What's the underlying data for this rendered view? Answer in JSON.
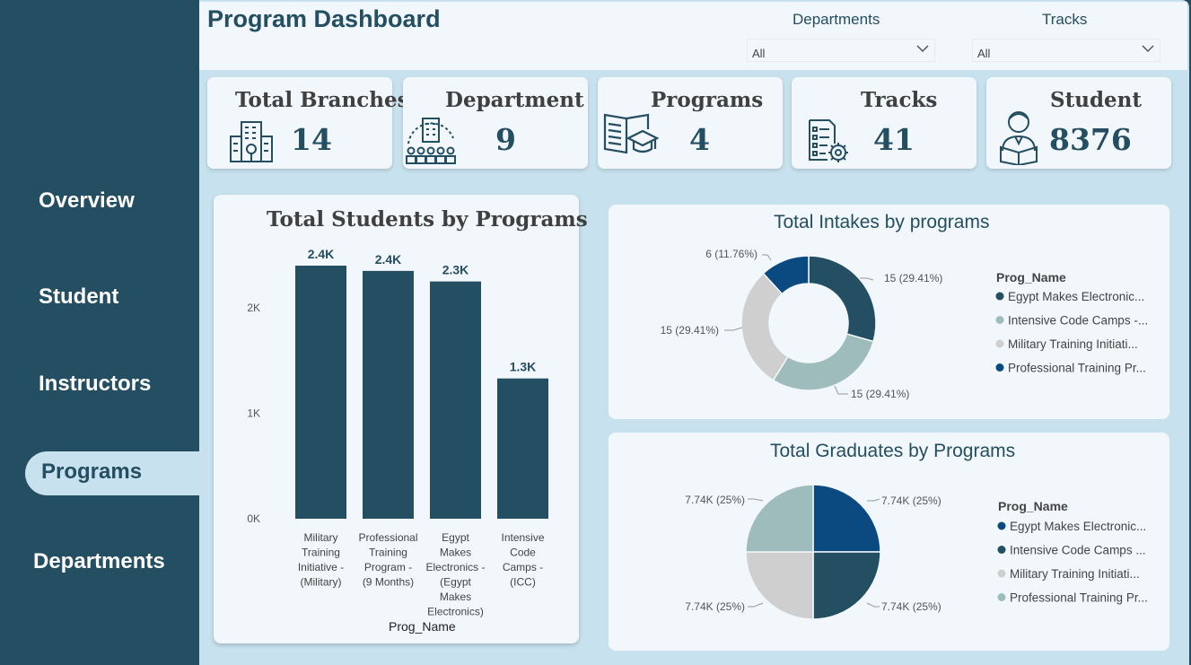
{
  "header": {
    "title": "Program Dashboard",
    "filters": [
      {
        "label": "Departments",
        "value": "All"
      },
      {
        "label": "Tracks",
        "value": "All"
      }
    ]
  },
  "nav": {
    "items": [
      {
        "label": "Overview"
      },
      {
        "label": "Student"
      },
      {
        "label": "Instructors"
      },
      {
        "label": "Programs",
        "active": true
      },
      {
        "label": "Departments"
      }
    ]
  },
  "cards": [
    {
      "title": "Total Branches",
      "value": "14",
      "icon": "branches-building-icon"
    },
    {
      "title": "Department",
      "value": "9",
      "icon": "department-building-icon"
    },
    {
      "title": "Programs",
      "value": "4",
      "icon": "book-graduation-icon"
    },
    {
      "title": "Tracks",
      "value": "41",
      "icon": "checklist-gear-icon"
    },
    {
      "title": "Student",
      "value": "8376",
      "icon": "student-reading-icon"
    }
  ],
  "colors": {
    "dark_teal": "#244e61",
    "navy": "#0b4a80",
    "sage": "#9fbcbc",
    "light_gray": "#cfcfcf",
    "panel_bg": "#f1f7fa",
    "page_bg": "#c7e2ee"
  },
  "chart_data": [
    {
      "type": "bar",
      "title": "Total Students by Programs",
      "xlabel": "Prog_Name",
      "ylabel": "",
      "categories": [
        "Military Training Initiative - (Military)",
        "Professional Training Program - (9 Months)",
        "Egypt Makes Electronics - (Egypt Makes Electronics)",
        "Intensive Code Camps - (ICC)"
      ],
      "category_lines": [
        [
          "Military",
          "Training",
          "Initiative -",
          "(Military)"
        ],
        [
          "Professional",
          "Training",
          "Program -",
          "(9 Months)"
        ],
        [
          "Egypt",
          "Makes",
          "Electronics -",
          "(Egypt",
          "Makes",
          "Electronics)"
        ],
        [
          "Intensive",
          "Code",
          "Camps -",
          "(ICC)"
        ]
      ],
      "values": [
        2400,
        2350,
        2250,
        1330
      ],
      "data_labels": [
        "2.4K",
        "2.4K",
        "2.3K",
        "1.3K"
      ],
      "yticks": [
        {
          "value": 0,
          "label": "0K"
        },
        {
          "value": 1000,
          "label": "1K"
        },
        {
          "value": 2000,
          "label": "2K"
        }
      ],
      "ylim": [
        0,
        2400
      ],
      "grid": false
    },
    {
      "type": "pie",
      "donut": true,
      "title": "Total Intakes by programs",
      "legend_title": "Prog_Name",
      "legend_position": "right",
      "slices": [
        {
          "name": "Egypt Makes Electronic...",
          "value": 15,
          "label": "15 (29.41%)",
          "color": "#244e61"
        },
        {
          "name": "Intensive Code Camps -...",
          "value": 15,
          "label": "15 (29.41%)",
          "color": "#9fbcbc"
        },
        {
          "name": "Military Training Initiati...",
          "value": 15,
          "label": "15 (29.41%)",
          "color": "#cfcfcf"
        },
        {
          "name": "Professional Training Pr...",
          "value": 6,
          "label": "6 (11.76%)",
          "color": "#0b4a80"
        }
      ]
    },
    {
      "type": "pie",
      "donut": false,
      "title": "Total Graduates by Programs",
      "legend_title": "Prog_Name",
      "legend_position": "right",
      "slices": [
        {
          "name": "Egypt Makes Electronic...",
          "value": 7740,
          "label": "7.74K (25%)",
          "color": "#0b4a80"
        },
        {
          "name": "Intensive Code Camps ...",
          "value": 7740,
          "label": "7.74K (25%)",
          "color": "#244e61"
        },
        {
          "name": "Military Training Initiati...",
          "value": 7740,
          "label": "7.74K (25%)",
          "color": "#cfcfcf"
        },
        {
          "name": "Professional Training Pr...",
          "value": 7740,
          "label": "7.74K (25%)",
          "color": "#9fbcbc"
        }
      ]
    }
  ]
}
